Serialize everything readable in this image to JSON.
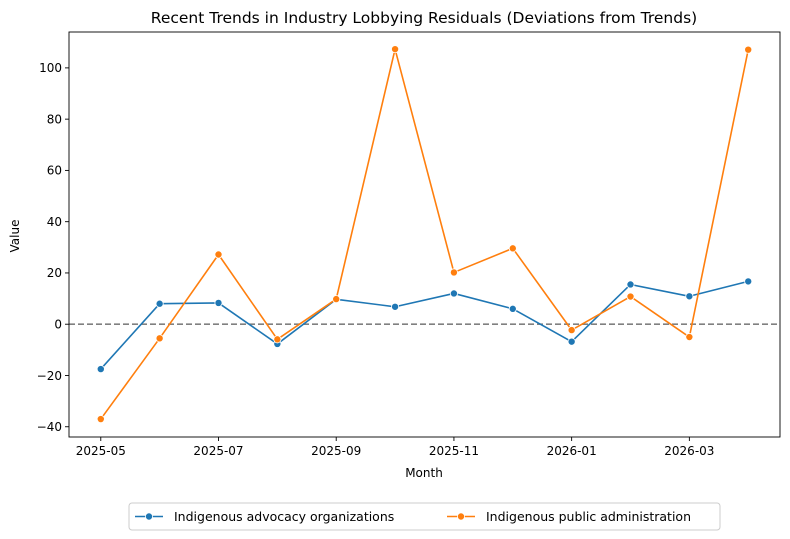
{
  "chart_data": {
    "type": "line",
    "title": "Recent Trends in Industry Lobbying Residuals (Deviations from Trends)",
    "xlabel": "Month",
    "ylabel": "Value",
    "x": [
      "2025-05",
      "2025-06",
      "2025-07",
      "2025-08",
      "2025-09",
      "2025-10",
      "2025-11",
      "2025-12",
      "2026-01",
      "2026-02",
      "2026-03",
      "2026-04"
    ],
    "x_ticks": [
      "2025-05",
      "2025-07",
      "2025-09",
      "2025-11",
      "2026-01",
      "2026-03"
    ],
    "y_ticks": [
      -40,
      -20,
      0,
      20,
      40,
      60,
      80,
      100
    ],
    "ylim": [
      -44,
      114
    ],
    "reference_line": {
      "y": 0,
      "style": "dashed",
      "color": "#808080"
    },
    "grid": false,
    "legend_position": "bottom-center, outside plot",
    "series": [
      {
        "name": "Indigenous advocacy organizations",
        "color": "#1f77b4",
        "marker": "circle",
        "values": [
          -17.5,
          8.0,
          8.3,
          -7.7,
          9.7,
          6.8,
          12.0,
          6.0,
          -6.8,
          15.5,
          10.9,
          16.7
        ]
      },
      {
        "name": "Indigenous public administration",
        "color": "#ff7f0e",
        "marker": "circle",
        "values": [
          -37.0,
          -5.5,
          27.2,
          -5.9,
          9.8,
          107.3,
          20.2,
          29.6,
          -2.3,
          10.8,
          -5.0,
          107.1
        ]
      }
    ]
  }
}
